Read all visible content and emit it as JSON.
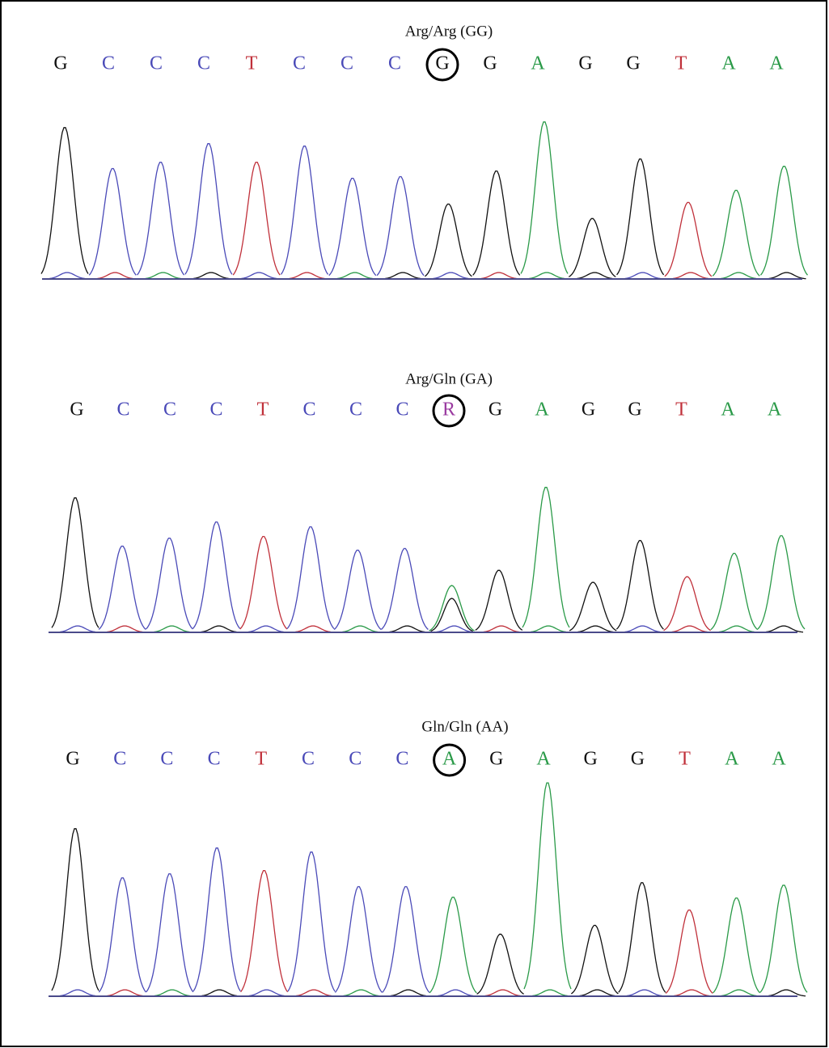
{
  "base_colors": {
    "G": "#111111",
    "C": "#4a4ab8",
    "T": "#c0303a",
    "A": "#2a9a48",
    "R": "#9a3aa0"
  },
  "panels": [
    {
      "title": "Arg/Arg (GG)",
      "bases": [
        "G",
        "C",
        "C",
        "C",
        "T",
        "C",
        "C",
        "C",
        "G",
        "G",
        "A",
        "G",
        "G",
        "T",
        "A",
        "A"
      ]
    },
    {
      "title": "Arg/Gln (GA)",
      "bases": [
        "G",
        "C",
        "C",
        "C",
        "T",
        "C",
        "C",
        "C",
        "R",
        "G",
        "A",
        "G",
        "G",
        "T",
        "A",
        "A"
      ]
    },
    {
      "title": "Gln/Gln (AA)",
      "bases": [
        "G",
        "C",
        "C",
        "C",
        "T",
        "C",
        "C",
        "C",
        "A",
        "G",
        "A",
        "G",
        "G",
        "T",
        "A",
        "A"
      ]
    }
  ]
}
